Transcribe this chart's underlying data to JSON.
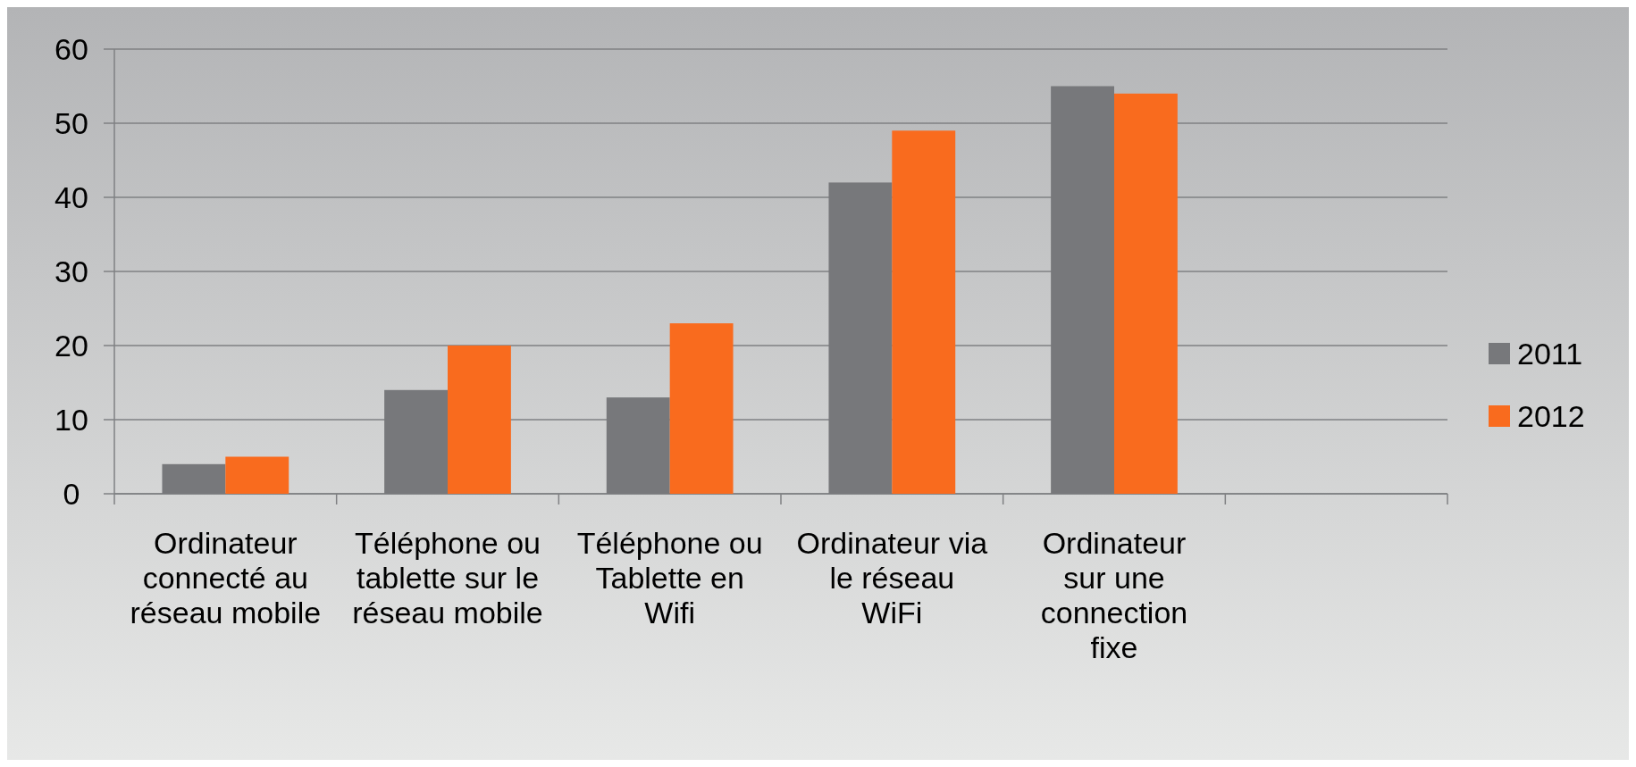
{
  "chart_data": {
    "type": "bar",
    "categories": [
      "Ordinateur connecté au réseau mobile",
      "Téléphone ou tablette sur le réseau mobile",
      "Téléphone ou Tablette en Wifi",
      "Ordinateur via le réseau WiFi",
      "Ordinateur sur une connection fixe",
      null
    ],
    "series": [
      {
        "name": "2011",
        "color": "#77787b",
        "values": [
          4,
          14,
          13,
          42,
          55,
          null
        ]
      },
      {
        "name": "2012",
        "color": "#f96b1e",
        "values": [
          5,
          20,
          23,
          49,
          54,
          null
        ]
      }
    ],
    "ylim": [
      0,
      60
    ],
    "yticks": [
      0,
      10,
      20,
      30,
      40,
      50,
      60
    ],
    "grid": "y",
    "legend": "right"
  }
}
